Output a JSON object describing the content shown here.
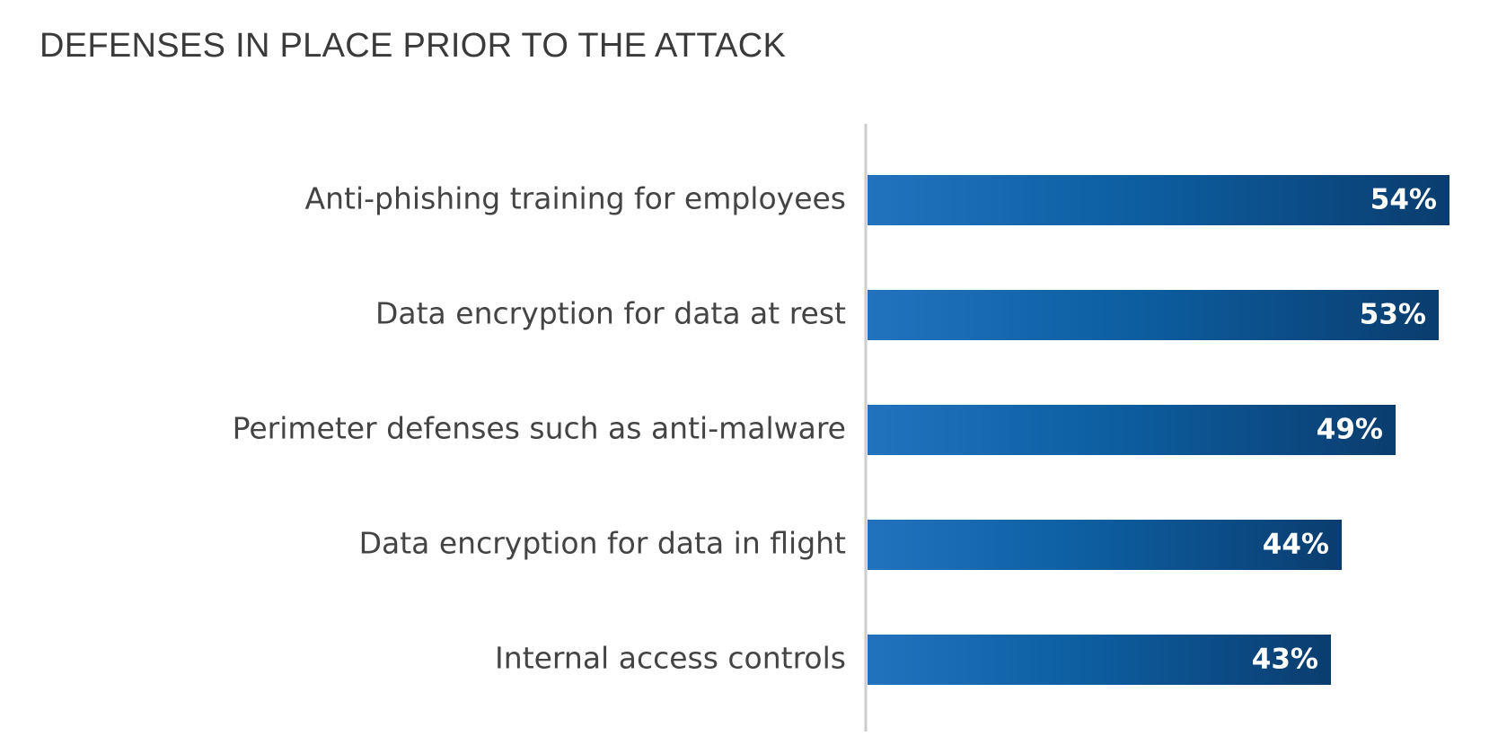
{
  "chart_data": {
    "type": "bar",
    "orientation": "horizontal",
    "title": "DEFENSES IN PLACE PRIOR TO THE ATTACK",
    "categories": [
      "Anti-phishing training for employees",
      "Data encryption for data at rest",
      "Perimeter defenses such as anti-malware",
      "Data encryption for data in flight",
      "Internal access controls"
    ],
    "values": [
      54,
      53,
      49,
      44,
      43
    ],
    "value_labels": [
      "54%",
      "53%",
      "49%",
      "44%",
      "43%"
    ],
    "unit": "%",
    "xlim": [
      0,
      54
    ],
    "grid": false,
    "legend": "none",
    "colors": {
      "bar_start": "#2173be",
      "bar_mid": "#0d5fa2",
      "bar_end": "#0a3d6f",
      "axis": "#cccccc",
      "label": "#444444",
      "title": "#3a3a3a"
    }
  }
}
